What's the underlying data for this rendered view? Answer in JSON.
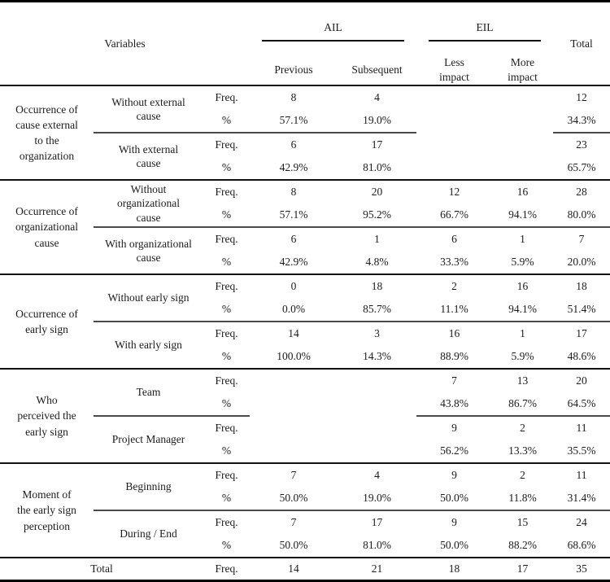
{
  "page": {
    "background": "#ffffff",
    "text_color": "#1c1c1c",
    "rule_color": "#000000",
    "sub_rule_color": "#4a4a4a"
  },
  "table": {
    "header": {
      "variables_label": "Variables",
      "group_columns": [
        {
          "label": "AIL",
          "subcolumns": [
            "Previous",
            "Subsequent"
          ]
        },
        {
          "label": "EIL",
          "subcolumns": [
            "Less\nimpact",
            "More\nimpact"
          ]
        }
      ],
      "total_label": "Total",
      "freq_label": "Freq.",
      "pct_label": "%"
    },
    "sections": [
      {
        "group": "Occurrence of\ncause external\nto the\norganization",
        "divider_columns": [
          2,
          3,
          4,
          5,
          8
        ],
        "rows": [
          {
            "label": "Without external\ncause",
            "freq": [
              "8",
              "4",
              "",
              "",
              "12"
            ],
            "pct": [
              "57.1%",
              "19.0%",
              "",
              "",
              "34.3%"
            ]
          },
          {
            "label": "With external\ncause",
            "freq": [
              "6",
              "17",
              "",
              "",
              "23"
            ],
            "pct": [
              "42.9%",
              "81.0%",
              "",
              "",
              "65.7%"
            ]
          }
        ]
      },
      {
        "group": "Occurrence of\norganizational\ncause",
        "divider_columns": [
          2,
          3,
          4,
          5,
          6,
          7,
          8
        ],
        "rows": [
          {
            "label": "Without\norganizational\ncause",
            "freq": [
              "8",
              "20",
              "12",
              "16",
              "28"
            ],
            "pct": [
              "57.1%",
              "95.2%",
              "66.7%",
              "94.1%",
              "80.0%"
            ]
          },
          {
            "label": "With organizational\ncause",
            "freq": [
              "6",
              "1",
              "6",
              "1",
              "7"
            ],
            "pct": [
              "42.9%",
              "4.8%",
              "33.3%",
              "5.9%",
              "20.0%"
            ]
          }
        ]
      },
      {
        "group": "Occurrence of\nearly sign",
        "divider_columns": [
          2,
          3,
          4,
          5,
          6,
          7,
          8
        ],
        "rows": [
          {
            "label": "Without early sign",
            "freq": [
              "0",
              "18",
              "2",
              "16",
              "18"
            ],
            "pct": [
              "0.0%",
              "85.7%",
              "11.1%",
              "94.1%",
              "51.4%"
            ]
          },
          {
            "label": "With early sign",
            "freq": [
              "14",
              "3",
              "16",
              "1",
              "17"
            ],
            "pct": [
              "100.0%",
              "14.3%",
              "88.9%",
              "5.9%",
              "48.6%"
            ]
          }
        ]
      },
      {
        "group": "Who\nperceived the\nearly sign",
        "divider_columns": [
          2,
          3,
          6,
          7,
          8
        ],
        "rows": [
          {
            "label": "Team",
            "freq": [
              "",
              "",
              "7",
              "13",
              "20"
            ],
            "pct": [
              "",
              "",
              "43.8%",
              "86.7%",
              "64.5%"
            ]
          },
          {
            "label": "Project Manager",
            "freq": [
              "",
              "",
              "9",
              "2",
              "11"
            ],
            "pct": [
              "",
              "",
              "56.2%",
              "13.3%",
              "35.5%"
            ]
          }
        ]
      },
      {
        "group": "Moment of\nthe early sign\nperception",
        "divider_columns": [
          2,
          3,
          4,
          5,
          6,
          7,
          8
        ],
        "rows": [
          {
            "label": "Beginning",
            "freq": [
              "7",
              "4",
              "9",
              "2",
              "11"
            ],
            "pct": [
              "50.0%",
              "19.0%",
              "50.0%",
              "11.8%",
              "31.4%"
            ]
          },
          {
            "label": "During / End",
            "freq": [
              "7",
              "17",
              "9",
              "15",
              "24"
            ],
            "pct": [
              "50.0%",
              "81.0%",
              "50.0%",
              "88.2%",
              "68.6%"
            ]
          }
        ]
      }
    ],
    "total_row": {
      "label": "Total",
      "measure_label": "Freq.",
      "values": [
        "14",
        "21",
        "18",
        "17",
        "35"
      ]
    }
  }
}
